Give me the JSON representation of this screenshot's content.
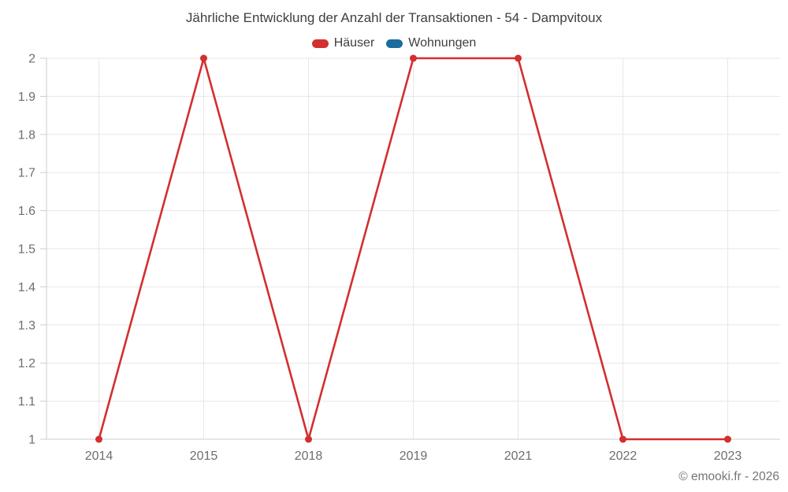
{
  "chart_data": {
    "type": "line",
    "title": "Jährliche Entwicklung der Anzahl der Transaktionen - 54 - Dampvitoux",
    "categories": [
      "2014",
      "2015",
      "2018",
      "2019",
      "2021",
      "2022",
      "2023"
    ],
    "series": [
      {
        "name": "Häuser",
        "color": "#d32f2f",
        "values": [
          1,
          2,
          1,
          2,
          2,
          1,
          1
        ]
      },
      {
        "name": "Wohnungen",
        "color": "#1a6d9e",
        "values": []
      }
    ],
    "xlabel": "",
    "ylabel": "",
    "ylim": [
      1,
      2
    ],
    "y_tick_step": 0.1,
    "y_tick_labels": [
      "1",
      "1.1",
      "1.2",
      "1.3",
      "1.4",
      "1.5",
      "1.6",
      "1.7",
      "1.8",
      "1.9",
      "2"
    ],
    "grid": true,
    "legend_position": "top",
    "colors": {
      "grid": "#e7e7e7",
      "axis": "#cccccc",
      "tick_text": "#6e6e6e",
      "title_text": "#3f3f3f",
      "footer_text": "#757575"
    }
  },
  "footer": {
    "copyright": "© emooki.fr - 2026"
  }
}
